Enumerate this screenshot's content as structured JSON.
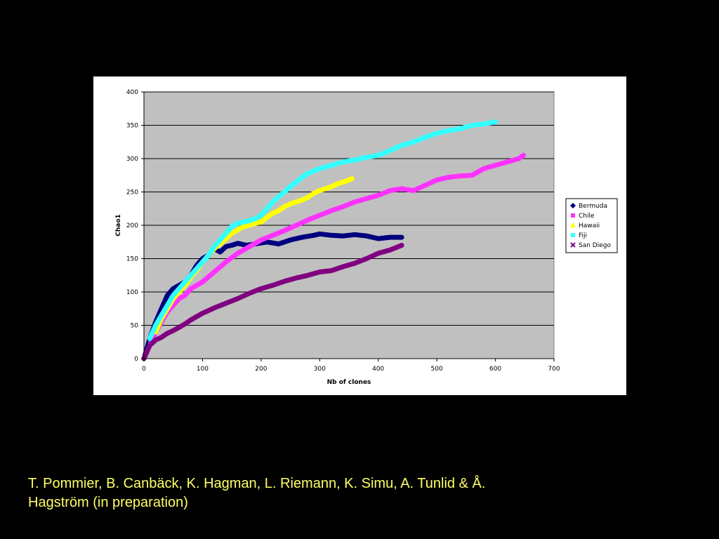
{
  "chart_data": {
    "type": "line",
    "title": "",
    "xlabel": "Nb of clones",
    "ylabel": "Chao1",
    "xlim": [
      0,
      700
    ],
    "ylim": [
      0,
      400
    ],
    "x_ticks": [
      0,
      100,
      200,
      300,
      400,
      500,
      600,
      700
    ],
    "y_ticks": [
      0,
      50,
      100,
      150,
      200,
      250,
      300,
      350,
      400
    ],
    "grid": "horizontal",
    "plot_background": "#c0c0c0",
    "legend_position": "right",
    "series": [
      {
        "name": "Bermuda",
        "color": "#000080",
        "marker": "diamond",
        "x": [
          0,
          10,
          20,
          30,
          40,
          50,
          60,
          70,
          80,
          90,
          100,
          110,
          120,
          130,
          140,
          150,
          160,
          175,
          190,
          210,
          230,
          250,
          270,
          290,
          300,
          320,
          340,
          360,
          380,
          400,
          420,
          440
        ],
        "y": [
          0,
          30,
          55,
          75,
          95,
          105,
          110,
          115,
          125,
          140,
          150,
          155,
          165,
          160,
          168,
          170,
          173,
          170,
          172,
          175,
          172,
          178,
          182,
          185,
          187,
          185,
          184,
          186,
          184,
          180,
          182,
          182
        ]
      },
      {
        "name": "Chile",
        "color": "#ff33ff",
        "marker": "square",
        "x": [
          0,
          10,
          20,
          30,
          40,
          50,
          60,
          70,
          80,
          100,
          120,
          140,
          160,
          180,
          200,
          220,
          240,
          260,
          280,
          300,
          320,
          340,
          360,
          380,
          400,
          420,
          440,
          460,
          480,
          500,
          520,
          540,
          560,
          580,
          600,
          620,
          640,
          648
        ],
        "y": [
          0,
          20,
          40,
          55,
          70,
          80,
          90,
          95,
          105,
          115,
          130,
          145,
          158,
          168,
          178,
          185,
          192,
          200,
          208,
          215,
          222,
          228,
          235,
          240,
          245,
          252,
          255,
          252,
          260,
          268,
          272,
          274,
          275,
          285,
          290,
          295,
          300,
          305
        ]
      },
      {
        "name": "Hawaii",
        "color": "#ffff00",
        "marker": "triangle",
        "x": [
          20,
          30,
          40,
          50,
          60,
          70,
          80,
          90,
          100,
          110,
          120,
          130,
          140,
          150,
          160,
          170,
          180,
          190,
          200,
          210,
          220,
          230,
          240,
          250,
          260,
          270,
          280,
          290,
          300,
          310,
          320,
          330,
          340,
          350,
          355
        ],
        "y": [
          40,
          60,
          75,
          90,
          100,
          110,
          122,
          132,
          145,
          155,
          165,
          172,
          180,
          188,
          193,
          198,
          200,
          203,
          205,
          212,
          218,
          222,
          228,
          232,
          235,
          238,
          242,
          248,
          252,
          255,
          258,
          262,
          265,
          268,
          270
        ]
      },
      {
        "name": "Fiji",
        "color": "#33ffff",
        "marker": "square",
        "x": [
          10,
          20,
          30,
          40,
          50,
          60,
          70,
          80,
          90,
          100,
          110,
          120,
          130,
          140,
          150,
          160,
          170,
          180,
          190,
          200,
          210,
          220,
          230,
          240,
          250,
          260,
          270,
          280,
          300,
          320,
          340,
          360,
          380,
          400,
          420,
          440,
          460,
          480,
          500,
          520,
          540,
          560,
          580,
          600
        ],
        "y": [
          30,
          50,
          65,
          80,
          95,
          105,
          115,
          125,
          135,
          145,
          155,
          168,
          178,
          188,
          198,
          203,
          205,
          207,
          210,
          215,
          225,
          235,
          243,
          250,
          258,
          265,
          272,
          278,
          285,
          290,
          295,
          298,
          302,
          305,
          312,
          320,
          325,
          332,
          338,
          342,
          345,
          350,
          352,
          355
        ]
      },
      {
        "name": "San Diego",
        "color": "#800080",
        "marker": "x",
        "x": [
          0,
          10,
          20,
          30,
          40,
          50,
          60,
          70,
          80,
          90,
          100,
          120,
          140,
          160,
          180,
          200,
          220,
          240,
          260,
          280,
          300,
          320,
          340,
          360,
          380,
          400,
          420,
          440
        ],
        "y": [
          0,
          20,
          28,
          32,
          38,
          42,
          47,
          52,
          58,
          63,
          68,
          76,
          83,
          90,
          98,
          105,
          110,
          116,
          121,
          125,
          130,
          132,
          138,
          143,
          150,
          158,
          163,
          170
        ]
      }
    ]
  },
  "citation": {
    "line1": "T. Pommier, B. Canbäck, K. Hagman, L. Riemann, K. Simu, A. Tunlid & Å.",
    "line2": "Hagström (in preparation)"
  }
}
